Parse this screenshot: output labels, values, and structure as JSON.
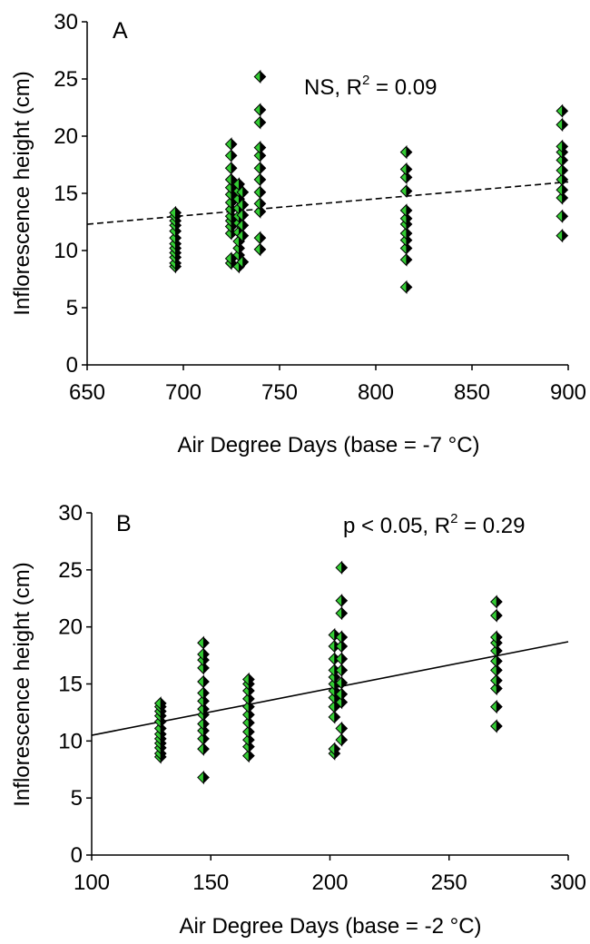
{
  "chart_data": [
    {
      "type": "scatter",
      "panel_label": "A",
      "annotation": "NS, R",
      "annotation_sup": "2",
      "annotation_tail": " = 0.09",
      "xlabel": "Air Degree Days (base = -7 °C)",
      "ylabel": "Inflorescence height (cm)",
      "xlim": [
        650,
        900
      ],
      "ylim": [
        0,
        30
      ],
      "xticks": [
        "650",
        "700",
        "750",
        "800",
        "850",
        "900"
      ],
      "yticks": [
        "0",
        "5",
        "10",
        "15",
        "20",
        "25",
        "30"
      ],
      "grid": false,
      "marker_color": "#33cc33",
      "marker_shape": "diamond",
      "trendline": {
        "style": "dashed",
        "x": [
          650,
          900
        ],
        "y": [
          12.3,
          16.0
        ]
      },
      "series": [
        {
          "points": [
            [
              696,
              8.6
            ],
            [
              696,
              8.9
            ],
            [
              696,
              9.4
            ],
            [
              696,
              9.8
            ],
            [
              696,
              10.2
            ],
            [
              696,
              10.6
            ],
            [
              696,
              11.1
            ],
            [
              696,
              11.7
            ],
            [
              696,
              12.2
            ],
            [
              696,
              12.6
            ],
            [
              696,
              13.0
            ],
            [
              696,
              13.3
            ],
            [
              725,
              8.9
            ],
            [
              725,
              9.3
            ],
            [
              725,
              11.5
            ],
            [
              725,
              12.1
            ],
            [
              725,
              12.6
            ],
            [
              725,
              13.0
            ],
            [
              725,
              13.6
            ],
            [
              725,
              14.2
            ],
            [
              725,
              14.9
            ],
            [
              725,
              15.5
            ],
            [
              725,
              16.2
            ],
            [
              725,
              17.2
            ],
            [
              725,
              18.3
            ],
            [
              725,
              19.3
            ],
            [
              729,
              8.6
            ],
            [
              729,
              9.6
            ],
            [
              729,
              10.2
            ],
            [
              729,
              10.8
            ],
            [
              729,
              11.6
            ],
            [
              729,
              12.4
            ],
            [
              729,
              13.0
            ],
            [
              729,
              13.7
            ],
            [
              729,
              14.5
            ],
            [
              729,
              15.2
            ],
            [
              729,
              15.8
            ],
            [
              731,
              9.0
            ],
            [
              731,
              11.3
            ],
            [
              731,
              12.2
            ],
            [
              731,
              13.1
            ],
            [
              731,
              14.0
            ],
            [
              731,
              15.1
            ],
            [
              740,
              10.1
            ],
            [
              740,
              11.1
            ],
            [
              740,
              13.4
            ],
            [
              740,
              14.1
            ],
            [
              740,
              15.1
            ],
            [
              740,
              16.2
            ],
            [
              740,
              17.2
            ],
            [
              740,
              18.3
            ],
            [
              740,
              19.0
            ],
            [
              740,
              21.2
            ],
            [
              740,
              22.3
            ],
            [
              740,
              25.2
            ],
            [
              816,
              6.8
            ],
            [
              816,
              9.2
            ],
            [
              816,
              10.2
            ],
            [
              816,
              10.9
            ],
            [
              816,
              11.5
            ],
            [
              816,
              12.3
            ],
            [
              816,
              12.8
            ],
            [
              816,
              13.5
            ],
            [
              816,
              15.2
            ],
            [
              816,
              16.4
            ],
            [
              816,
              17.1
            ],
            [
              816,
              18.6
            ],
            [
              897,
              11.3
            ],
            [
              897,
              13.0
            ],
            [
              897,
              14.6
            ],
            [
              897,
              15.3
            ],
            [
              897,
              16.2
            ],
            [
              897,
              17.0
            ],
            [
              897,
              17.9
            ],
            [
              897,
              18.6
            ],
            [
              897,
              19.1
            ],
            [
              897,
              21.0
            ],
            [
              897,
              22.2
            ]
          ]
        }
      ]
    },
    {
      "type": "scatter",
      "panel_label": "B",
      "annotation": "p < 0.05, R",
      "annotation_sup": "2",
      "annotation_tail": " = 0.29",
      "xlabel": "Air Degree Days (base = -2 °C)",
      "ylabel": "Inflorescence height (cm)",
      "xlim": [
        100,
        300
      ],
      "ylim": [
        0,
        30
      ],
      "xticks": [
        "100",
        "150",
        "200",
        "250",
        "300"
      ],
      "yticks": [
        "0",
        "5",
        "10",
        "15",
        "20",
        "25",
        "30"
      ],
      "grid": false,
      "marker_color": "#33cc33",
      "marker_shape": "diamond",
      "trendline": {
        "style": "solid",
        "x": [
          100,
          300
        ],
        "y": [
          10.5,
          18.7
        ]
      },
      "series": [
        {
          "points": [
            [
              129,
              8.6
            ],
            [
              129,
              8.9
            ],
            [
              129,
              9.4
            ],
            [
              129,
              9.8
            ],
            [
              129,
              10.2
            ],
            [
              129,
              10.6
            ],
            [
              129,
              11.1
            ],
            [
              129,
              11.7
            ],
            [
              129,
              12.2
            ],
            [
              129,
              12.6
            ],
            [
              129,
              13.0
            ],
            [
              129,
              13.3
            ],
            [
              147,
              6.8
            ],
            [
              147,
              9.3
            ],
            [
              147,
              10.2
            ],
            [
              147,
              10.9
            ],
            [
              147,
              11.5
            ],
            [
              147,
              12.3
            ],
            [
              147,
              12.8
            ],
            [
              147,
              13.5
            ],
            [
              147,
              14.2
            ],
            [
              147,
              15.2
            ],
            [
              147,
              16.4
            ],
            [
              147,
              17.1
            ],
            [
              147,
              17.6
            ],
            [
              147,
              18.6
            ],
            [
              166,
              8.7
            ],
            [
              166,
              9.5
            ],
            [
              166,
              10.1
            ],
            [
              166,
              10.8
            ],
            [
              166,
              11.6
            ],
            [
              166,
              12.3
            ],
            [
              166,
              13.0
            ],
            [
              166,
              13.7
            ],
            [
              166,
              14.4
            ],
            [
              166,
              15.0
            ],
            [
              166,
              15.4
            ],
            [
              202,
              8.9
            ],
            [
              202,
              9.3
            ],
            [
              202,
              12.1
            ],
            [
              202,
              13.0
            ],
            [
              202,
              13.8
            ],
            [
              202,
              14.4
            ],
            [
              202,
              15.0
            ],
            [
              202,
              15.6
            ],
            [
              202,
              16.2
            ],
            [
              202,
              17.2
            ],
            [
              202,
              18.3
            ],
            [
              202,
              19.3
            ],
            [
              205,
              10.1
            ],
            [
              205,
              11.1
            ],
            [
              205,
              13.4
            ],
            [
              205,
              14.1
            ],
            [
              205,
              15.1
            ],
            [
              205,
              16.2
            ],
            [
              205,
              17.2
            ],
            [
              205,
              18.3
            ],
            [
              205,
              19.1
            ],
            [
              205,
              21.2
            ],
            [
              205,
              22.3
            ],
            [
              205,
              25.2
            ],
            [
              270,
              11.3
            ],
            [
              270,
              13.0
            ],
            [
              270,
              14.6
            ],
            [
              270,
              15.3
            ],
            [
              270,
              16.2
            ],
            [
              270,
              17.0
            ],
            [
              270,
              17.9
            ],
            [
              270,
              18.6
            ],
            [
              270,
              19.1
            ],
            [
              270,
              21.0
            ],
            [
              270,
              22.2
            ]
          ]
        }
      ]
    }
  ]
}
